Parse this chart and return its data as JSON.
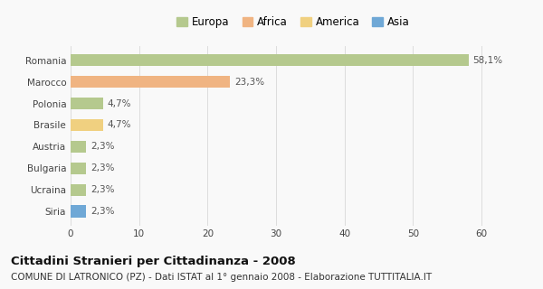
{
  "categories": [
    "Romania",
    "Marocco",
    "Polonia",
    "Brasile",
    "Austria",
    "Bulgaria",
    "Ucraina",
    "Siria"
  ],
  "values": [
    58.1,
    23.3,
    4.7,
    4.7,
    2.3,
    2.3,
    2.3,
    2.3
  ],
  "labels": [
    "58,1%",
    "23,3%",
    "4,7%",
    "4,7%",
    "2,3%",
    "2,3%",
    "2,3%",
    "2,3%"
  ],
  "colors": [
    "#b5c98e",
    "#f0b482",
    "#b5c98e",
    "#f0d080",
    "#b5c98e",
    "#b5c98e",
    "#b5c98e",
    "#6fa8d6"
  ],
  "legend_labels": [
    "Europa",
    "Africa",
    "America",
    "Asia"
  ],
  "legend_colors": [
    "#b5c98e",
    "#f0b482",
    "#f0d080",
    "#6fa8d6"
  ],
  "title": "Cittadini Stranieri per Cittadinanza - 2008",
  "subtitle": "COMUNE DI LATRONICO (PZ) - Dati ISTAT al 1° gennaio 2008 - Elaborazione TUTTITALIA.IT",
  "xlim": [
    0,
    65
  ],
  "xticks": [
    0,
    10,
    20,
    30,
    40,
    50,
    60
  ],
  "background_color": "#f9f9f9",
  "bar_height": 0.55,
  "title_fontsize": 9.5,
  "subtitle_fontsize": 7.5,
  "label_fontsize": 7.5,
  "tick_fontsize": 7.5,
  "legend_fontsize": 8.5
}
